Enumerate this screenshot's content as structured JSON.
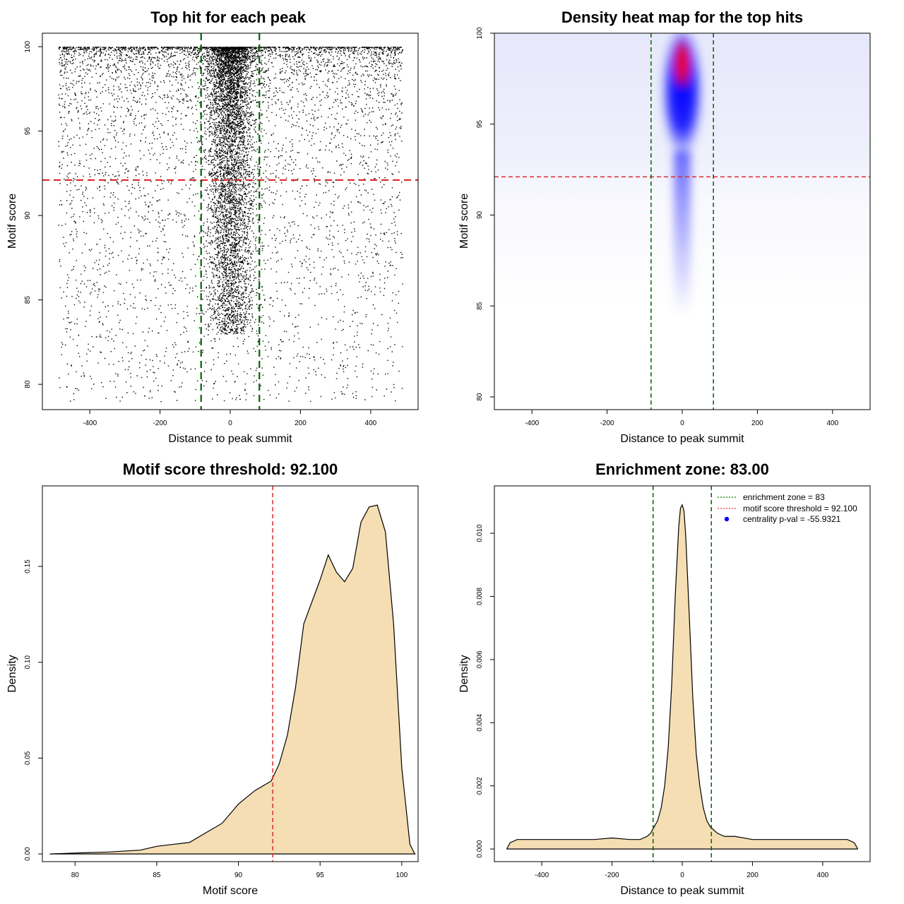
{
  "chart_data": [
    {
      "type": "scatter",
      "title": "Top hit for each peak",
      "xlabel": "Distance to peak summit",
      "ylabel": "Motif score",
      "xlim": [
        -535,
        535
      ],
      "ylim": [
        78.5,
        100.8
      ],
      "xticks": [
        -400,
        -200,
        0,
        200,
        400
      ],
      "yticks": [
        80,
        85,
        90,
        95,
        100
      ],
      "vlines": [
        -83,
        83
      ],
      "hline": 92.1,
      "vline_color": "#006400",
      "hline_color": "#dc2a2a",
      "point_color": "#000000",
      "points_note_range": {
        "x": [
          -490,
          490
        ],
        "y": [
          78.5,
          100
        ]
      },
      "central_band_x": [
        -80,
        80
      ]
    },
    {
      "type": "heatmap",
      "title": "Density heat map for the top hits",
      "xlabel": "Distance to peak summit",
      "ylabel": "Motif score",
      "xlim": [
        -500,
        500
      ],
      "ylim": [
        79.3,
        100
      ],
      "xticks": [
        -400,
        -200,
        0,
        200,
        400
      ],
      "yticks": [
        80,
        85,
        90,
        95,
        100
      ],
      "vlines": [
        -83,
        83
      ],
      "hline": 92.1,
      "peak": {
        "x": 0,
        "y": 98.3
      },
      "colors": [
        "#ffffff",
        "#0000ff",
        "#ff0000"
      ]
    },
    {
      "type": "area",
      "title": "Motif score threshold: 92.100",
      "xlabel": "Motif score",
      "ylabel": "Density",
      "xlim": [
        78.0,
        101.0
      ],
      "ylim": [
        -0.004,
        0.192
      ],
      "xticks": [
        80,
        85,
        90,
        95,
        100
      ],
      "yticks": [
        "0.00",
        "0.05",
        "0.10",
        "0.15"
      ],
      "vline": 92.1,
      "vline_color": "#dc2a2a",
      "fill": "#f5deb3",
      "x": [
        78.5,
        80,
        82,
        84,
        85,
        86,
        87,
        88,
        89,
        90,
        91,
        92,
        92.5,
        93,
        93.5,
        94,
        95,
        95.5,
        96,
        96.5,
        97,
        97.5,
        98,
        98.5,
        99,
        99.5,
        100,
        100.5,
        100.8
      ],
      "y": [
        0.0,
        0.0005,
        0.001,
        0.002,
        0.004,
        0.005,
        0.006,
        0.011,
        0.016,
        0.026,
        0.033,
        0.038,
        0.047,
        0.062,
        0.087,
        0.12,
        0.143,
        0.156,
        0.147,
        0.142,
        0.149,
        0.173,
        0.181,
        0.182,
        0.168,
        0.12,
        0.045,
        0.005,
        0.0
      ]
    },
    {
      "type": "area",
      "title": "Enrichment zone: 83.00",
      "xlabel": "Distance to peak summit",
      "ylabel": "Density",
      "xlim": [
        -535,
        535
      ],
      "ylim": [
        -0.0004,
        0.0115
      ],
      "xticks": [
        -400,
        -200,
        0,
        200,
        400
      ],
      "yticks": [
        "0.000",
        "0.002",
        "0.004",
        "0.006",
        "0.008",
        "0.010"
      ],
      "vlines": [
        -83,
        83
      ],
      "vline_color": "#006400",
      "fill": "#f5deb3",
      "x": [
        -500,
        -490,
        -470,
        -440,
        -400,
        -350,
        -300,
        -250,
        -200,
        -150,
        -120,
        -100,
        -90,
        -80,
        -70,
        -60,
        -50,
        -40,
        -30,
        -20,
        -10,
        -5,
        0,
        5,
        10,
        20,
        30,
        40,
        50,
        60,
        70,
        80,
        90,
        100,
        120,
        150,
        200,
        250,
        300,
        350,
        400,
        440,
        470,
        490,
        500
      ],
      "y": [
        0.0,
        0.0002,
        0.0003,
        0.0003,
        0.0003,
        0.0003,
        0.0003,
        0.0003,
        0.00035,
        0.0003,
        0.0003,
        0.0004,
        0.0005,
        0.0007,
        0.0009,
        0.0013,
        0.002,
        0.0032,
        0.0052,
        0.008,
        0.0102,
        0.0108,
        0.0109,
        0.0107,
        0.0099,
        0.0074,
        0.0048,
        0.003,
        0.002,
        0.0013,
        0.0009,
        0.0007,
        0.0006,
        0.0005,
        0.0004,
        0.0004,
        0.0003,
        0.0003,
        0.0003,
        0.0003,
        0.0003,
        0.0003,
        0.0003,
        0.0002,
        0.0
      ],
      "legend": [
        {
          "label": "enrichment zone = 83",
          "style": "dotted",
          "color": "#008000"
        },
        {
          "label": "motif score threshold = 92.100",
          "style": "dotted",
          "color": "#ff3333"
        },
        {
          "label": "centrality p-val = -55.9321",
          "style": "point",
          "color": "#0000ff"
        }
      ]
    }
  ]
}
